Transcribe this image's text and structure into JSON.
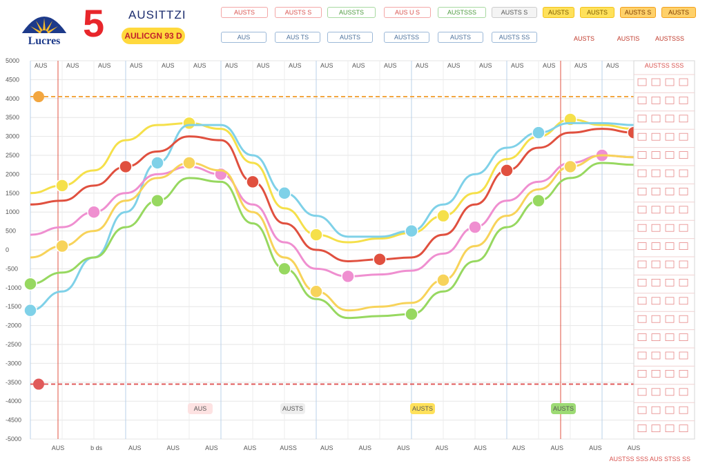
{
  "header": {
    "big_number": "5",
    "brand_title": "AUSITTZI",
    "brand_badge": "AULICGN 93 D",
    "logo_text": "Lucres"
  },
  "top_buttons": [
    {
      "label": "AUSTS",
      "style": "red"
    },
    {
      "label": "AUSTS S",
      "style": "red"
    },
    {
      "label": "AUSSTS",
      "style": "green"
    },
    {
      "label": "AUS U S",
      "style": "red"
    },
    {
      "label": "AUSTSSS",
      "style": "green"
    },
    {
      "label": "AUSTS S",
      "style": "gray"
    },
    {
      "label": "AUSTS",
      "style": "yellow"
    },
    {
      "label": "AUSTS",
      "style": "yellow"
    },
    {
      "label": "AUSTS S",
      "style": "orange"
    },
    {
      "label": "AUSTS",
      "style": "orange"
    }
  ],
  "second_row_buttons": [
    {
      "label": "AUS",
      "style": "outline"
    },
    {
      "label": "AUS TS",
      "style": "outline"
    },
    {
      "label": "AUSTS",
      "style": "outline"
    },
    {
      "label": "AUSTSS",
      "style": "outline"
    },
    {
      "label": "AUSTS",
      "style": "outline"
    },
    {
      "label": "AUSTS SS",
      "style": "outline"
    }
  ],
  "right_header_labels": [
    "AUSTS",
    "AUSTIS",
    "AUSTSSS"
  ],
  "chart_data": {
    "type": "line",
    "x": [
      "AUS",
      "AUS",
      "AUS",
      "AUS",
      "AUS",
      "AUS",
      "AUS",
      "AUS",
      "AUS",
      "AUS",
      "AUS",
      "AUS",
      "AUS",
      "AUS",
      "AUS",
      "AUS",
      "AUS",
      "AUS",
      "AUS",
      "AUS"
    ],
    "y_ticks": [
      "5000",
      "4500",
      "4000",
      "3500",
      "3000",
      "2500",
      "2000",
      "1500",
      "1000",
      "500",
      "0",
      "-500",
      "-1000",
      "-1500",
      "-2000",
      "-2500",
      "-3000",
      "-3500",
      "-4000",
      "-4500",
      "-5000"
    ],
    "x_bottom_labels": [
      "AUS",
      "b ds",
      "AUS",
      "AUS",
      "AUS",
      "AUS",
      "AUSS",
      "AUS",
      "AUS",
      "AUS",
      "AUS",
      "AUS",
      "AUS",
      "AUS",
      "AUS",
      "AUS"
    ],
    "ylim": [
      -5000,
      5000
    ],
    "series": [
      {
        "color": "#f5e04a",
        "values": [
          1500,
          1700,
          2100,
          2900,
          3300,
          3350,
          3200,
          2300,
          1100,
          400,
          200,
          300,
          450,
          900,
          1500,
          2400,
          3000,
          3450,
          3300,
          3200
        ]
      },
      {
        "color": "#7fd1e8",
        "values": [
          -1600,
          -1100,
          -200,
          1000,
          2300,
          3300,
          3300,
          2500,
          1500,
          900,
          350,
          350,
          500,
          1200,
          2000,
          2700,
          3100,
          3350,
          3350,
          3300
        ]
      },
      {
        "color": "#e0503f",
        "values": [
          1200,
          1300,
          1700,
          2200,
          2600,
          3000,
          2900,
          1800,
          700,
          0,
          -300,
          -250,
          -200,
          400,
          1200,
          2100,
          2700,
          3100,
          3200,
          3100
        ]
      },
      {
        "color": "#ef8fd0",
        "values": [
          400,
          600,
          1000,
          1500,
          2000,
          2200,
          2000,
          1200,
          200,
          -500,
          -700,
          -650,
          -550,
          -100,
          600,
          1300,
          1800,
          2300,
          2500,
          2450
        ]
      },
      {
        "color": "#f7d35a",
        "values": [
          -200,
          100,
          500,
          1300,
          1900,
          2300,
          2100,
          1000,
          -200,
          -1100,
          -1600,
          -1500,
          -1400,
          -800,
          100,
          900,
          1600,
          2200,
          2500,
          2450
        ]
      },
      {
        "color": "#97d860",
        "values": [
          -900,
          -600,
          -200,
          600,
          1300,
          1900,
          1800,
          700,
          -500,
          -1300,
          -1800,
          -1750,
          -1700,
          -1100,
          -300,
          600,
          1300,
          1900,
          2300,
          2250
        ]
      }
    ],
    "reference_lines": [
      {
        "value": 4050,
        "color": "#f2a640",
        "label": "AUS"
      },
      {
        "value": -3550,
        "color": "#e05a5a",
        "label": "AUS"
      }
    ],
    "grid": true
  },
  "right_table": {
    "header": "AUSTSS SSS",
    "rows": 20
  },
  "bottom_chips": [
    {
      "label": "AUS",
      "style": "red"
    },
    {
      "label": "AUSTS",
      "style": "gray"
    },
    {
      "label": "AUSTS",
      "style": "yellow"
    },
    {
      "label": "AUSTS",
      "style": "green"
    }
  ],
  "footer_text": "AUSTSS SSS AUS STSS SS"
}
